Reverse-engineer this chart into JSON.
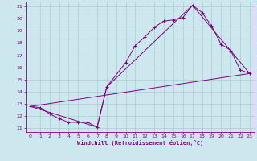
{
  "bg_color": "#cce8ee",
  "grid_color": "#aacccc",
  "line_color": "#800080",
  "marker": "+",
  "xlabel": "Windchill (Refroidissement éolien,°C)",
  "xlim": [
    -0.5,
    23.5
  ],
  "ylim": [
    10.7,
    21.4
  ],
  "yticks": [
    11,
    12,
    13,
    14,
    15,
    16,
    17,
    18,
    19,
    20,
    21
  ],
  "xticks": [
    0,
    1,
    2,
    3,
    4,
    5,
    6,
    7,
    8,
    9,
    10,
    11,
    12,
    13,
    14,
    15,
    16,
    17,
    18,
    19,
    20,
    21,
    22,
    23
  ],
  "line1_x": [
    0,
    1,
    2,
    3,
    4,
    5,
    6,
    7,
    8,
    10,
    11,
    12,
    13,
    14,
    15,
    16,
    17,
    18,
    19,
    20,
    21,
    22,
    23
  ],
  "line1_y": [
    12.8,
    12.7,
    12.2,
    11.8,
    11.5,
    11.5,
    11.5,
    11.1,
    14.4,
    16.4,
    17.8,
    18.5,
    19.3,
    19.8,
    19.9,
    20.1,
    21.1,
    20.5,
    19.4,
    17.9,
    17.4,
    15.8,
    15.5
  ],
  "line2_x": [
    0,
    23
  ],
  "line2_y": [
    12.8,
    15.5
  ],
  "line3_x": [
    0,
    7,
    8,
    17,
    23
  ],
  "line3_y": [
    12.8,
    11.1,
    14.4,
    21.1,
    15.5
  ]
}
